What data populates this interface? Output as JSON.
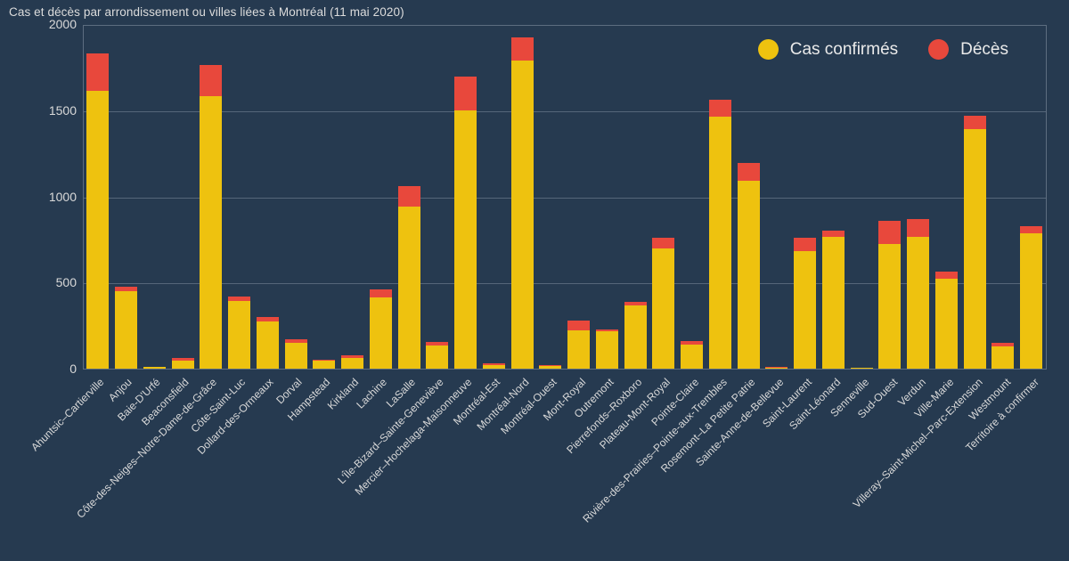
{
  "title": "Cas et décès par arrondissement ou villes liées à Montréal (11 mai 2020)",
  "colors": {
    "background": "#263a50",
    "confirmed": "#eec20f",
    "deaths": "#e8483c",
    "grid": "#55667a",
    "frame": "#5d6d80",
    "text": "#d9d9d9"
  },
  "legend": {
    "items": [
      {
        "label": "Cas confirmés",
        "color": "#eec20f"
      },
      {
        "label": "Décès",
        "color": "#e8483c"
      }
    ]
  },
  "chart_data": {
    "type": "bar",
    "stacked": true,
    "title": "Cas et décès par arrondissement ou villes liées à Montréal (11 mai 2020)",
    "xlabel": "",
    "ylabel": "",
    "ylim": [
      0,
      2000
    ],
    "yticks": [
      0,
      500,
      1000,
      1500,
      2000
    ],
    "grid": true,
    "legend_position": "top-right",
    "categories": [
      "Ahuntsic–Cartierville",
      "Anjou",
      "Baie-D'Urfé",
      "Beaconsfield",
      "Côte-des-Neiges–Notre-Dame-de-Grâce",
      "Côte-Saint-Luc",
      "Dollard-des-Ormeaux",
      "Dorval",
      "Hampstead",
      "Kirkland",
      "Lachine",
      "LaSalle",
      "L'Île-Bizard–Sainte-Geneviève",
      "Mercier–Hochelaga-Maisonneuve",
      "Montréal-Est",
      "Montréal-Nord",
      "Montréal-Ouest",
      "Mont-Royal",
      "Outremont",
      "Pierrefonds–Roxboro",
      "Plateau-Mont-Royal",
      "Pointe-Claire",
      "Rivière-des-Prairies–Pointe-aux-Trembles",
      "Rosemont–La Petite Patrie",
      "Sainte-Anne-de-Bellevue",
      "Saint-Laurent",
      "Saint-Léonard",
      "Senneville",
      "Sud-Ouest",
      "Verdun",
      "Ville-Marie",
      "Villeray–Saint-Michel–Parc-Extension",
      "Westmount",
      "Territoire à confirmer"
    ],
    "series": [
      {
        "name": "Cas confirmés",
        "color": "#eec20f",
        "values": [
          1620,
          450,
          10,
          45,
          1590,
          395,
          275,
          150,
          45,
          60,
          415,
          945,
          135,
          1505,
          20,
          1800,
          15,
          225,
          220,
          370,
          700,
          140,
          1470,
          1095,
          5,
          685,
          770,
          5,
          725,
          770,
          525,
          1395,
          130,
          790
        ]
      },
      {
        "name": "Décès",
        "color": "#e8483c",
        "values": [
          220,
          30,
          0,
          15,
          180,
          25,
          25,
          20,
          5,
          20,
          50,
          120,
          20,
          200,
          10,
          135,
          5,
          55,
          10,
          20,
          65,
          20,
          100,
          105,
          5,
          80,
          35,
          0,
          135,
          105,
          40,
          80,
          20,
          40
        ]
      }
    ]
  }
}
